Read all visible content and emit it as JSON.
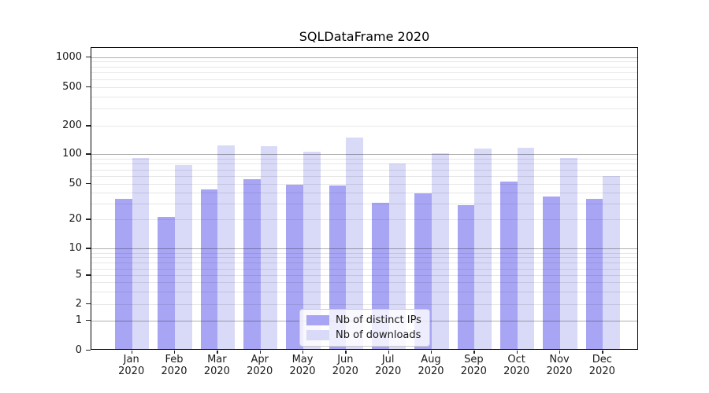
{
  "title": "SQLDataFrame 2020",
  "chart_data": {
    "type": "bar",
    "title": "SQLDataFrame 2020",
    "categories": [
      "Jan",
      "Feb",
      "Mar",
      "Apr",
      "May",
      "Jun",
      "Jul",
      "Aug",
      "Sep",
      "Oct",
      "Nov",
      "Dec"
    ],
    "category_year": "2020",
    "series": [
      {
        "name": "Nb of distinct IPs",
        "color": "#a8a6f4",
        "values": [
          33,
          21,
          42,
          54,
          47,
          46,
          30,
          38,
          28,
          51,
          35,
          33
        ]
      },
      {
        "name": "Nb of downloads",
        "color": "#d9d9f8",
        "values": [
          90,
          76,
          122,
          119,
          103,
          147,
          78,
          100,
          112,
          114,
          89,
          58
        ]
      }
    ],
    "y_axis": {
      "scale": "symlog",
      "ticks": [
        0,
        1,
        2,
        5,
        10,
        20,
        50,
        100,
        200,
        500,
        1000
      ],
      "ylim": [
        0,
        1200
      ]
    },
    "grid": {
      "major": true,
      "minor": true,
      "major_color": "#b0b0b0",
      "minor_color": "#e7e7e7"
    },
    "legend": {
      "position": "inside-bottom-center",
      "labels": [
        "Nb of distinct IPs",
        "Nb of downloads"
      ]
    }
  }
}
